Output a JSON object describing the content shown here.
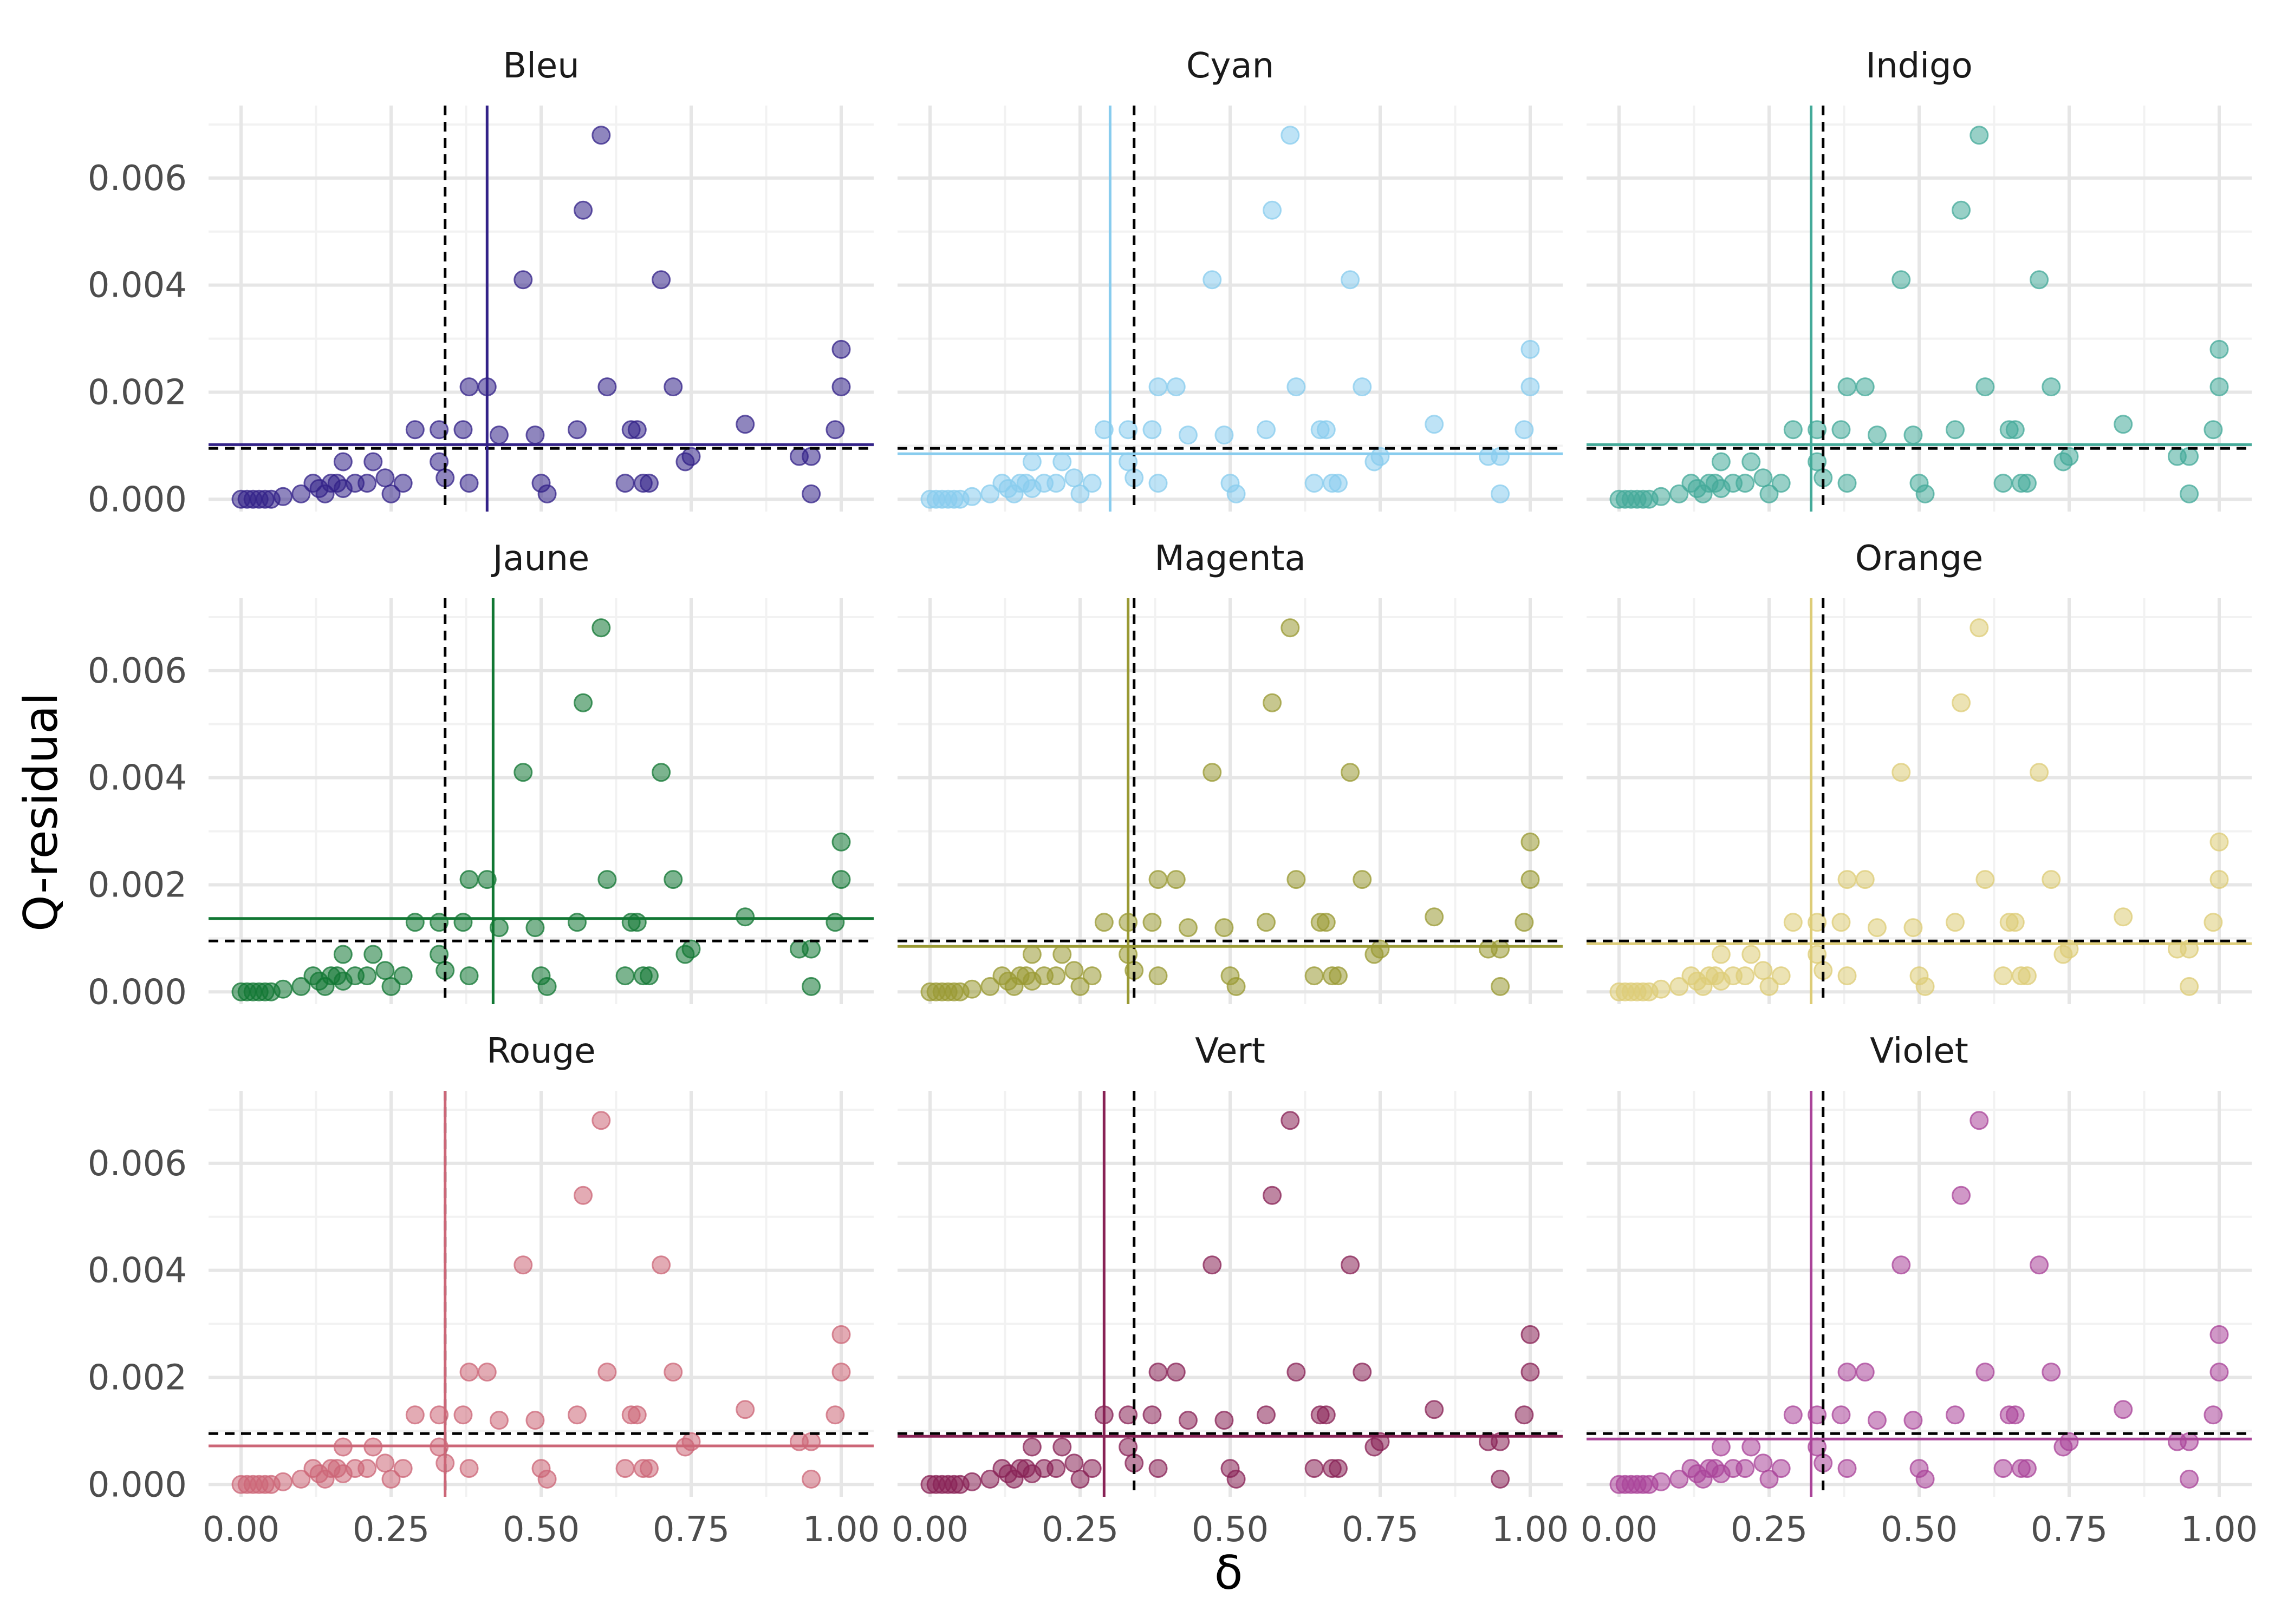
{
  "chart_data": {
    "type": "scatter",
    "facet": "3x3",
    "xlabel": "δ",
    "ylabel": "Q-residual",
    "xlim": [
      0,
      1
    ],
    "ylim": [
      0,
      0.007
    ],
    "x_ticks": [
      "0.00",
      "0.25",
      "0.50",
      "0.75",
      "1.00"
    ],
    "y_ticks": [
      "0.000",
      "0.002",
      "0.004",
      "0.006"
    ],
    "grid": true,
    "reference_lines": {
      "x": 0.34,
      "y": 0.00095,
      "style": "dashed",
      "color": "#000000"
    },
    "base_points": [
      [
        0,
        0
      ],
      [
        0.01,
        0
      ],
      [
        0.02,
        0
      ],
      [
        0.03,
        0
      ],
      [
        0.04,
        0
      ],
      [
        0.05,
        0
      ],
      [
        0.07,
        5e-05
      ],
      [
        0.1,
        0.0001
      ],
      [
        0.12,
        0.0003
      ],
      [
        0.13,
        0.0002
      ],
      [
        0.14,
        0.0001
      ],
      [
        0.15,
        0.0003
      ],
      [
        0.16,
        0.0003
      ],
      [
        0.17,
        0.0002
      ],
      [
        0.17,
        0.0007
      ],
      [
        0.19,
        0.0003
      ],
      [
        0.21,
        0.0003
      ],
      [
        0.22,
        0.0007
      ],
      [
        0.24,
        0.0004
      ],
      [
        0.25,
        0.0001
      ],
      [
        0.27,
        0.0003
      ],
      [
        0.29,
        0.0013
      ],
      [
        0.33,
        0.0013
      ],
      [
        0.33,
        0.0007
      ],
      [
        0.34,
        0.0004
      ],
      [
        0.37,
        0.0013
      ],
      [
        0.38,
        0.0003
      ],
      [
        0.38,
        0.0021
      ],
      [
        0.41,
        0.0021
      ],
      [
        0.43,
        0.0012
      ],
      [
        0.47,
        0.0041
      ],
      [
        0.49,
        0.0012
      ],
      [
        0.5,
        0.0003
      ],
      [
        0.51,
        0.0001
      ],
      [
        0.56,
        0.0013
      ],
      [
        0.57,
        0.0054
      ],
      [
        0.6,
        0.0068
      ],
      [
        0.61,
        0.0021
      ],
      [
        0.64,
        0.0003
      ],
      [
        0.65,
        0.0013
      ],
      [
        0.66,
        0.0013
      ],
      [
        0.67,
        0.0003
      ],
      [
        0.68,
        0.0003
      ],
      [
        0.7,
        0.0041
      ],
      [
        0.72,
        0.0021
      ],
      [
        0.74,
        0.0007
      ],
      [
        0.75,
        0.0008
      ],
      [
        0.84,
        0.0014
      ],
      [
        0.93,
        0.0008
      ],
      [
        0.95,
        0.0001
      ],
      [
        0.95,
        0.0008
      ],
      [
        0.99,
        0.0013
      ],
      [
        1.0,
        0.0021
      ],
      [
        1.0,
        0.0028
      ]
    ],
    "series": [
      {
        "name": "Bleu",
        "color": "#332288",
        "mean_x": 0.41,
        "mean_y": 0.00102
      },
      {
        "name": "Cyan",
        "color": "#88CCEE",
        "mean_x": 0.3,
        "mean_y": 0.00085
      },
      {
        "name": "Indigo",
        "color": "#44AA99",
        "mean_x": 0.32,
        "mean_y": 0.00102
      },
      {
        "name": "Jaune",
        "color": "#117733",
        "mean_x": 0.42,
        "mean_y": 0.00137
      },
      {
        "name": "Magenta",
        "color": "#999933",
        "mean_x": 0.33,
        "mean_y": 0.00085
      },
      {
        "name": "Orange",
        "color": "#DDCC77",
        "mean_x": 0.32,
        "mean_y": 0.0009
      },
      {
        "name": "Rouge",
        "color": "#CC6677",
        "mean_x": 0.34,
        "mean_y": 0.00072
      },
      {
        "name": "Vert",
        "color": "#882255",
        "mean_x": 0.29,
        "mean_y": 0.0009
      },
      {
        "name": "Violet",
        "color": "#AA4499",
        "mean_x": 0.32,
        "mean_y": 0.00085
      }
    ]
  }
}
